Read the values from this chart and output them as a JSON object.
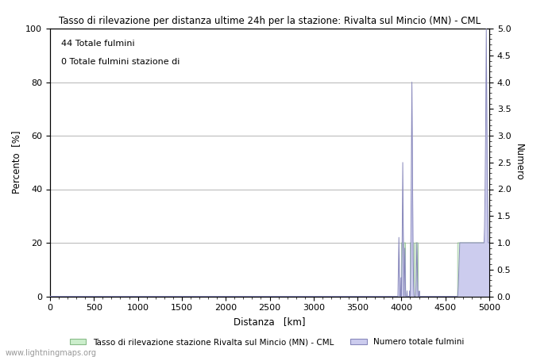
{
  "title": "Tasso di rilevazione per distanza ultime 24h per la stazione: Rivalta sul Mincio (MN) - CML",
  "xlabel": "Distanza   [km]",
  "ylabel_left": "Percento  [%]",
  "ylabel_right": "Numero",
  "annotation_line1": "44 Totale fulmini",
  "annotation_line2": "0 Totale fulmini stazione di",
  "legend_label1": "Tasso di rilevazione stazione Rivalta sul Mincio (MN) - CML",
  "legend_label2": "Numero totale fulmini",
  "watermark": "www.lightningmaps.org",
  "xlim": [
    0,
    5000
  ],
  "ylim_left": [
    0,
    100
  ],
  "ylim_right": [
    0.0,
    5.0
  ],
  "xticks": [
    0,
    500,
    1000,
    1500,
    2000,
    2500,
    3000,
    3500,
    4000,
    4500,
    5000
  ],
  "yticks_left": [
    0,
    20,
    40,
    60,
    80,
    100
  ],
  "yticks_right": [
    0.0,
    0.5,
    1.0,
    1.5,
    2.0,
    2.5,
    3.0,
    3.5,
    4.0,
    4.5,
    5.0
  ],
  "color_line_blue": "#8888bb",
  "color_fill_numero": "#ccccee",
  "color_fill_tasso": "#cceecc",
  "color_grid": "#aaaaaa",
  "color_bg": "#ffffff",
  "num_data": [
    [
      0,
      0
    ],
    [
      3959,
      0
    ],
    [
      3960,
      0
    ],
    [
      3961,
      0.1
    ],
    [
      3963,
      0.3
    ],
    [
      3965,
      0.5
    ],
    [
      3967,
      0.7
    ],
    [
      3969,
      0.9
    ],
    [
      3971,
      1.1
    ],
    [
      3973,
      0.9
    ],
    [
      3975,
      0.7
    ],
    [
      3977,
      0.5
    ],
    [
      3979,
      0.3
    ],
    [
      3981,
      0.1
    ],
    [
      3982,
      0
    ],
    [
      3990,
      0
    ],
    [
      3992,
      0.05
    ],
    [
      3994,
      0.15
    ],
    [
      3996,
      0.25
    ],
    [
      3998,
      0.35
    ],
    [
      3999,
      0
    ],
    [
      4000,
      0
    ],
    [
      4001,
      0.05
    ],
    [
      4003,
      0.2
    ],
    [
      4005,
      0.5
    ],
    [
      4007,
      0.8
    ],
    [
      4009,
      1.2
    ],
    [
      4011,
      1.6
    ],
    [
      4013,
      2.0
    ],
    [
      4015,
      2.5
    ],
    [
      4017,
      2.0
    ],
    [
      4019,
      1.6
    ],
    [
      4021,
      1.2
    ],
    [
      4023,
      0.9
    ],
    [
      4025,
      0.7
    ],
    [
      4027,
      0.5
    ],
    [
      4028,
      0
    ],
    [
      4030,
      0
    ],
    [
      4031,
      0.1
    ],
    [
      4033,
      0.3
    ],
    [
      4035,
      0.5
    ],
    [
      4037,
      0.7
    ],
    [
      4039,
      0.9
    ],
    [
      4041,
      0.7
    ],
    [
      4043,
      0.5
    ],
    [
      4045,
      0.3
    ],
    [
      4047,
      0.1
    ],
    [
      4048,
      0
    ],
    [
      4060,
      0
    ],
    [
      4062,
      0.05
    ],
    [
      4064,
      0.1
    ],
    [
      4066,
      0.05
    ],
    [
      4067,
      0
    ],
    [
      4090,
      0
    ],
    [
      4092,
      0.05
    ],
    [
      4094,
      0.1
    ],
    [
      4096,
      0.05
    ],
    [
      4097,
      0
    ],
    [
      4100,
      0
    ],
    [
      4101,
      0.1
    ],
    [
      4103,
      0.3
    ],
    [
      4105,
      0.6
    ],
    [
      4107,
      1.0
    ],
    [
      4109,
      1.5
    ],
    [
      4111,
      2.0
    ],
    [
      4113,
      2.5
    ],
    [
      4115,
      3.0
    ],
    [
      4117,
      3.5
    ],
    [
      4119,
      4.0
    ],
    [
      4121,
      3.5
    ],
    [
      4123,
      3.0
    ],
    [
      4125,
      2.5
    ],
    [
      4127,
      2.0
    ],
    [
      4129,
      1.5
    ],
    [
      4131,
      1.0
    ],
    [
      4133,
      0.7
    ],
    [
      4135,
      0.5
    ],
    [
      4137,
      0.3
    ],
    [
      4139,
      0.2
    ],
    [
      4141,
      0.1
    ],
    [
      4143,
      0.05
    ],
    [
      4145,
      0
    ],
    [
      4160,
      0
    ],
    [
      4162,
      0.05
    ],
    [
      4164,
      0.1
    ],
    [
      4166,
      0.2
    ],
    [
      4168,
      0.3
    ],
    [
      4170,
      0.5
    ],
    [
      4172,
      0.7
    ],
    [
      4174,
      0.9
    ],
    [
      4176,
      1.0
    ],
    [
      4178,
      0.8
    ],
    [
      4180,
      0.6
    ],
    [
      4182,
      0.4
    ],
    [
      4184,
      0.2
    ],
    [
      4186,
      0.1
    ],
    [
      4188,
      0.05
    ],
    [
      4190,
      0
    ],
    [
      4200,
      0
    ],
    [
      4202,
      0.05
    ],
    [
      4204,
      0.1
    ],
    [
      4206,
      0.05
    ],
    [
      4207,
      0
    ],
    [
      4210,
      0
    ],
    [
      4640,
      0
    ],
    [
      4642,
      0.05
    ],
    [
      4644,
      0.1
    ],
    [
      4646,
      0.15
    ],
    [
      4648,
      0.2
    ],
    [
      4650,
      0.3
    ],
    [
      4652,
      0.4
    ],
    [
      4654,
      0.5
    ],
    [
      4656,
      0.6
    ],
    [
      4658,
      0.7
    ],
    [
      4660,
      0.8
    ],
    [
      4662,
      0.9
    ],
    [
      4664,
      1.0
    ],
    [
      4666,
      1.0
    ],
    [
      4700,
      1.0
    ],
    [
      4750,
      1.0
    ],
    [
      4800,
      1.0
    ],
    [
      4850,
      1.0
    ],
    [
      4870,
      1.0
    ],
    [
      4880,
      1.0
    ],
    [
      4890,
      1.0
    ],
    [
      4900,
      1.0
    ],
    [
      4910,
      1.0
    ],
    [
      4920,
      1.0
    ],
    [
      4930,
      1.0
    ],
    [
      4940,
      1.0
    ],
    [
      4942,
      1.1
    ],
    [
      4944,
      1.2
    ],
    [
      4946,
      1.3
    ],
    [
      4948,
      1.5
    ],
    [
      4950,
      1.7
    ],
    [
      4952,
      2.0
    ],
    [
      4954,
      2.3
    ],
    [
      4956,
      2.7
    ],
    [
      4958,
      3.0
    ],
    [
      4960,
      3.5
    ],
    [
      4962,
      4.0
    ],
    [
      4964,
      4.5
    ],
    [
      4966,
      5.0
    ],
    [
      4968,
      4.5
    ],
    [
      4970,
      4.0
    ],
    [
      4972,
      3.5
    ],
    [
      4974,
      3.0
    ],
    [
      4976,
      2.5
    ],
    [
      4978,
      2.0
    ],
    [
      4980,
      1.8
    ],
    [
      4982,
      1.6
    ],
    [
      4984,
      1.4
    ],
    [
      4986,
      1.2
    ],
    [
      4988,
      1.0
    ],
    [
      4990,
      1.0
    ],
    [
      4992,
      1.0
    ],
    [
      4994,
      1.0
    ],
    [
      4996,
      1.0
    ],
    [
      4998,
      1.0
    ],
    [
      5000,
      1.0
    ]
  ],
  "tasso_data": [
    [
      0,
      0
    ],
    [
      3999,
      0
    ],
    [
      4000,
      0
    ],
    [
      4001,
      20
    ],
    [
      4027,
      20
    ],
    [
      4028,
      0
    ],
    [
      4030,
      0
    ],
    [
      4031,
      20
    ],
    [
      4047,
      20
    ],
    [
      4048,
      0
    ],
    [
      4100,
      0
    ],
    [
      4101,
      20
    ],
    [
      4144,
      20
    ],
    [
      4145,
      0
    ],
    [
      4160,
      0
    ],
    [
      4161,
      20
    ],
    [
      4189,
      20
    ],
    [
      4190,
      0
    ],
    [
      4639,
      0
    ],
    [
      4640,
      20
    ],
    [
      4665,
      20
    ],
    [
      4700,
      20
    ],
    [
      4850,
      20
    ],
    [
      4940,
      20
    ],
    [
      4942,
      20
    ],
    [
      4988,
      20
    ],
    [
      4989,
      20
    ],
    [
      4990,
      20
    ],
    [
      4992,
      20
    ],
    [
      4994,
      20
    ],
    [
      4996,
      20
    ],
    [
      4998,
      20
    ],
    [
      5000,
      20
    ]
  ]
}
